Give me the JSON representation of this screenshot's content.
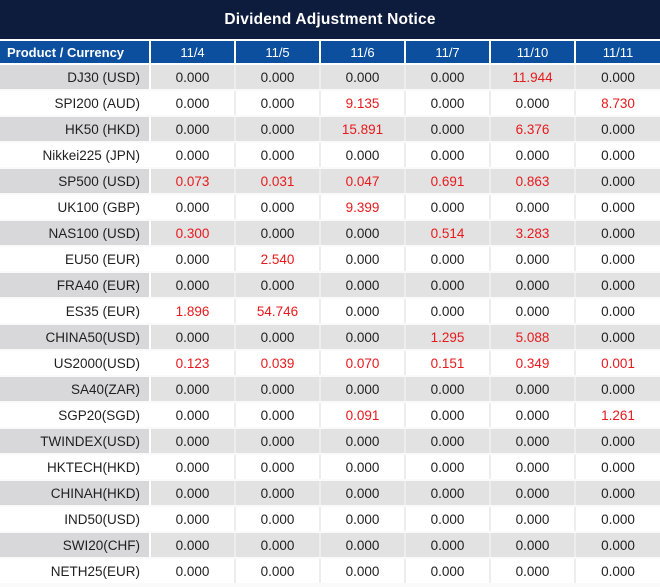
{
  "title": "Dividend Adjustment Notice",
  "table": {
    "product_header": "Product / Currency",
    "date_columns": [
      "11/4",
      "11/5",
      "11/6",
      "11/7",
      "11/10",
      "11/11"
    ],
    "rows": [
      {
        "product": "DJ30 (USD)",
        "values": [
          "0.000",
          "0.000",
          "0.000",
          "0.000",
          "11.944",
          "0.000"
        ]
      },
      {
        "product": "SPI200 (AUD)",
        "values": [
          "0.000",
          "0.000",
          "9.135",
          "0.000",
          "0.000",
          "8.730"
        ]
      },
      {
        "product": "HK50 (HKD)",
        "values": [
          "0.000",
          "0.000",
          "15.891",
          "0.000",
          "6.376",
          "0.000"
        ]
      },
      {
        "product": "Nikkei225 (JPN)",
        "values": [
          "0.000",
          "0.000",
          "0.000",
          "0.000",
          "0.000",
          "0.000"
        ]
      },
      {
        "product": "SP500 (USD)",
        "values": [
          "0.073",
          "0.031",
          "0.047",
          "0.691",
          "0.863",
          "0.000"
        ]
      },
      {
        "product": "UK100 (GBP)",
        "values": [
          "0.000",
          "0.000",
          "9.399",
          "0.000",
          "0.000",
          "0.000"
        ]
      },
      {
        "product": "NAS100 (USD)",
        "values": [
          "0.300",
          "0.000",
          "0.000",
          "0.514",
          "3.283",
          "0.000"
        ]
      },
      {
        "product": "EU50 (EUR)",
        "values": [
          "0.000",
          "2.540",
          "0.000",
          "0.000",
          "0.000",
          "0.000"
        ]
      },
      {
        "product": "FRA40 (EUR)",
        "values": [
          "0.000",
          "0.000",
          "0.000",
          "0.000",
          "0.000",
          "0.000"
        ]
      },
      {
        "product": "ES35 (EUR)",
        "values": [
          "1.896",
          "54.746",
          "0.000",
          "0.000",
          "0.000",
          "0.000"
        ]
      },
      {
        "product": "CHINA50(USD)",
        "values": [
          "0.000",
          "0.000",
          "0.000",
          "1.295",
          "5.088",
          "0.000"
        ]
      },
      {
        "product": "US2000(USD)",
        "values": [
          "0.123",
          "0.039",
          "0.070",
          "0.151",
          "0.349",
          "0.001"
        ]
      },
      {
        "product": "SA40(ZAR)",
        "values": [
          "0.000",
          "0.000",
          "0.000",
          "0.000",
          "0.000",
          "0.000"
        ]
      },
      {
        "product": "SGP20(SGD)",
        "values": [
          "0.000",
          "0.000",
          "0.091",
          "0.000",
          "0.000",
          "1.261"
        ]
      },
      {
        "product": "TWINDEX(USD)",
        "values": [
          "0.000",
          "0.000",
          "0.000",
          "0.000",
          "0.000",
          "0.000"
        ]
      },
      {
        "product": "HKTECH(HKD)",
        "values": [
          "0.000",
          "0.000",
          "0.000",
          "0.000",
          "0.000",
          "0.000"
        ]
      },
      {
        "product": "CHINAH(HKD)",
        "values": [
          "0.000",
          "0.000",
          "0.000",
          "0.000",
          "0.000",
          "0.000"
        ]
      },
      {
        "product": "IND50(USD)",
        "values": [
          "0.000",
          "0.000",
          "0.000",
          "0.000",
          "0.000",
          "0.000"
        ]
      },
      {
        "product": "SWI20(CHF)",
        "values": [
          "0.000",
          "0.000",
          "0.000",
          "0.000",
          "0.000",
          "0.000"
        ]
      },
      {
        "product": "NETH25(EUR)",
        "values": [
          "0.000",
          "0.000",
          "0.000",
          "0.000",
          "0.000",
          "0.000"
        ]
      }
    ]
  },
  "colors": {
    "title_bg": "#0d1b3c",
    "header_bg": "#0b4f9e",
    "zero_text": "#1f1f1f",
    "nonzero_text": "#e8191c",
    "gray_row_bg": "#e2e2e2",
    "gray_product_bg": "#d8d8db"
  }
}
